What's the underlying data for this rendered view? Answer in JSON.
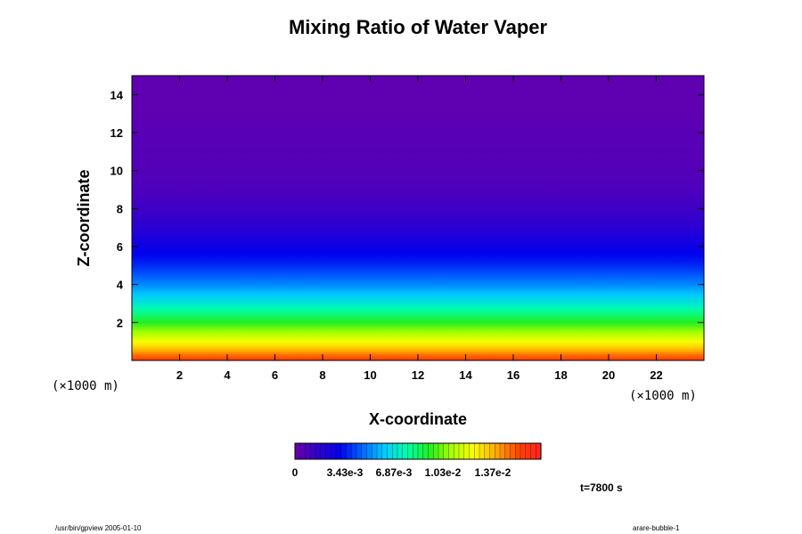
{
  "chart_data": {
    "type": "heatmap",
    "title": "Mixing Ratio of Water Vaper",
    "xlabel": "X-coordinate",
    "ylabel": "Z-coordinate",
    "x_unit": "(×1000 m)",
    "z_unit": "(×1000 m)",
    "xlim": [
      0,
      24
    ],
    "ylim": [
      0,
      15
    ],
    "x_ticks": [
      "2",
      "4",
      "6",
      "8",
      "10",
      "12",
      "14",
      "16",
      "18",
      "20",
      "22"
    ],
    "y_ticks": [
      "2",
      "4",
      "6",
      "8",
      "10",
      "12",
      "14"
    ],
    "colorbar": {
      "labels": [
        "0",
        "3.43e-3",
        "6.87e-3",
        "1.03e-2",
        "1.37e-2"
      ],
      "range": [
        0,
        0.0165
      ]
    },
    "time_label": "t=7800 s",
    "field_profile": [
      {
        "z": 0.0,
        "value": 0.0155
      },
      {
        "z": 0.5,
        "value": 0.0135
      },
      {
        "z": 1.0,
        "value": 0.0118
      },
      {
        "z": 2.0,
        "value": 0.009
      },
      {
        "z": 3.0,
        "value": 0.0068
      },
      {
        "z": 4.0,
        "value": 0.005
      },
      {
        "z": 5.0,
        "value": 0.0036
      },
      {
        "z": 6.0,
        "value": 0.0026
      },
      {
        "z": 7.0,
        "value": 0.0018
      },
      {
        "z": 8.0,
        "value": 0.0012
      },
      {
        "z": 9.0,
        "value": 0.0008
      },
      {
        "z": 10.0,
        "value": 0.0006
      },
      {
        "z": 12.0,
        "value": 0.0005
      },
      {
        "z": 13.0,
        "value": 0.0003
      },
      {
        "z": 15.0,
        "value": 0.0003
      }
    ],
    "colors": [
      "#6a00aa",
      "#3400cc",
      "#0000ee",
      "#0066ff",
      "#00ccff",
      "#00ffaa",
      "#22ee22",
      "#aaff00",
      "#ffff00",
      "#ffaa00",
      "#ff4400",
      "#ff2222"
    ]
  },
  "footer": {
    "left": "/usr/bin/gpview 2005-01-10",
    "right": "arare-bubble-1"
  }
}
